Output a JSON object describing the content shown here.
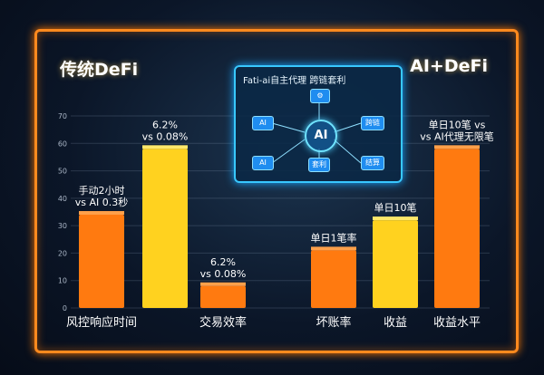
{
  "titles": {
    "left": "传统DeFi",
    "right": "AI+DeFi"
  },
  "flow_panel": {
    "title": "Fati-ai自主代理  跨链套利",
    "hub": "AI",
    "nodes": [
      "AI",
      "AI",
      "跨链",
      "套利",
      "结算"
    ]
  },
  "colors": {
    "orange": "#ff7a10",
    "yellow": "#ffd21f",
    "frame": "#ff8a1e",
    "panel": "#38c8ff"
  },
  "chart_data": {
    "type": "bar",
    "categories": [
      "风控响应时间",
      "交易效率",
      "坏账率",
      "收益",
      "收益水平"
    ],
    "yticks": [
      0,
      10,
      20,
      30,
      40,
      50,
      60,
      70
    ],
    "ylim": [
      0,
      70
    ],
    "bars": [
      {
        "category": "风控响应时间",
        "color": "orange",
        "value": 34,
        "annotation": [
          "手动2小时",
          "vs AI 0.3秒"
        ]
      },
      {
        "category": "风控响应时间",
        "color": "yellow",
        "value": 58,
        "annotation": [
          "6.2%",
          "vs 0.08%"
        ]
      },
      {
        "category": "交易效率",
        "color": "orange",
        "value": 8,
        "annotation": [
          "6.2%",
          "vs 0.08%"
        ]
      },
      {
        "category": "坏账率",
        "color": "orange",
        "value": 21,
        "annotation": [
          "单日1笔率"
        ]
      },
      {
        "category": "收益",
        "color": "yellow",
        "value": 32,
        "annotation": [
          "单日10笔"
        ]
      },
      {
        "category": "收益水平",
        "color": "orange",
        "value": 58,
        "annotation": [
          "单日10笔 vs",
          "vs AI代理无限笔"
        ]
      }
    ]
  }
}
